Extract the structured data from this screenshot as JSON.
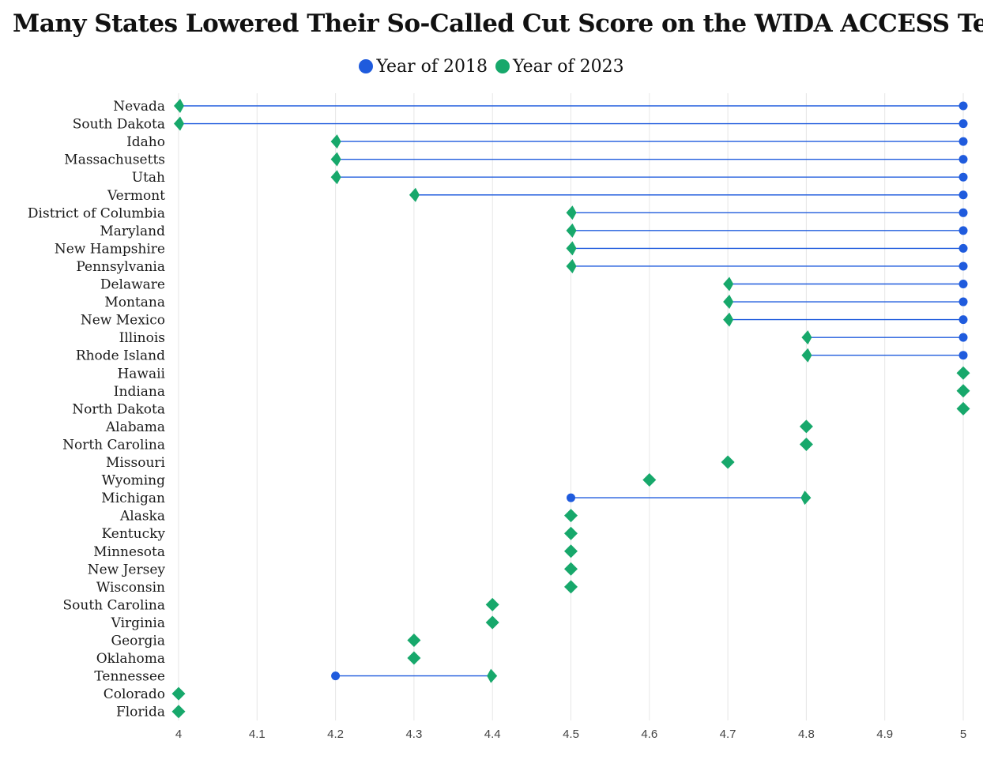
{
  "chart_data": {
    "type": "dumbbell",
    "title": "Many States Lowered Their So-Called Cut Score on the WIDA ACCESS Test",
    "xlabel": "",
    "ylabel": "",
    "xlim": [
      4,
      5
    ],
    "x_ticks": [
      "4",
      "4.1",
      "4.2",
      "4.3",
      "4.4",
      "4.5",
      "4.6",
      "4.7",
      "4.8",
      "4.9",
      "5"
    ],
    "grid": true,
    "legend_position": "top-center",
    "series": [
      {
        "name": "Year of 2018",
        "color": "#1f5bdd",
        "marker": "circle"
      },
      {
        "name": "Year of 2023",
        "color": "#17a86b",
        "marker": "diamond"
      }
    ],
    "rows": [
      {
        "state": "Nevada",
        "y2018": 5.0,
        "y2023": 4.0
      },
      {
        "state": "South Dakota",
        "y2018": 5.0,
        "y2023": 4.0
      },
      {
        "state": "Idaho",
        "y2018": 5.0,
        "y2023": 4.2
      },
      {
        "state": "Massachusetts",
        "y2018": 5.0,
        "y2023": 4.2
      },
      {
        "state": "Utah",
        "y2018": 5.0,
        "y2023": 4.2
      },
      {
        "state": "Vermont",
        "y2018": 5.0,
        "y2023": 4.3
      },
      {
        "state": "District of Columbia",
        "y2018": 5.0,
        "y2023": 4.5
      },
      {
        "state": "Maryland",
        "y2018": 5.0,
        "y2023": 4.5
      },
      {
        "state": "New Hampshire",
        "y2018": 5.0,
        "y2023": 4.5
      },
      {
        "state": "Pennsylvania",
        "y2018": 5.0,
        "y2023": 4.5
      },
      {
        "state": "Delaware",
        "y2018": 5.0,
        "y2023": 4.7
      },
      {
        "state": "Montana",
        "y2018": 5.0,
        "y2023": 4.7
      },
      {
        "state": "New Mexico",
        "y2018": 5.0,
        "y2023": 4.7
      },
      {
        "state": "Illinois",
        "y2018": 5.0,
        "y2023": 4.8
      },
      {
        "state": "Rhode Island",
        "y2018": 5.0,
        "y2023": 4.8
      },
      {
        "state": "Hawaii",
        "y2018": 5.0,
        "y2023": 5.0
      },
      {
        "state": "Indiana",
        "y2018": 5.0,
        "y2023": 5.0
      },
      {
        "state": "North Dakota",
        "y2018": 5.0,
        "y2023": 5.0
      },
      {
        "state": "Alabama",
        "y2018": 4.8,
        "y2023": 4.8
      },
      {
        "state": "North Carolina",
        "y2018": 4.8,
        "y2023": 4.8
      },
      {
        "state": "Missouri",
        "y2018": 4.7,
        "y2023": 4.7
      },
      {
        "state": "Wyoming",
        "y2018": 4.6,
        "y2023": 4.6
      },
      {
        "state": "Michigan",
        "y2018": 4.5,
        "y2023": 4.8
      },
      {
        "state": "Alaska",
        "y2018": 4.5,
        "y2023": 4.5
      },
      {
        "state": "Kentucky",
        "y2018": 4.5,
        "y2023": 4.5
      },
      {
        "state": "Minnesota",
        "y2018": 4.5,
        "y2023": 4.5
      },
      {
        "state": "New Jersey",
        "y2018": 4.5,
        "y2023": 4.5
      },
      {
        "state": "Wisconsin",
        "y2018": 4.5,
        "y2023": 4.5
      },
      {
        "state": "South Carolina",
        "y2018": 4.4,
        "y2023": 4.4
      },
      {
        "state": "Virginia",
        "y2018": 4.4,
        "y2023": 4.4
      },
      {
        "state": "Georgia",
        "y2018": 4.3,
        "y2023": 4.3
      },
      {
        "state": "Oklahoma",
        "y2018": 4.3,
        "y2023": 4.3
      },
      {
        "state": "Tennessee",
        "y2018": 4.2,
        "y2023": 4.4
      },
      {
        "state": "Colorado",
        "y2018": 4.0,
        "y2023": 4.0
      },
      {
        "state": "Florida",
        "y2018": 4.0,
        "y2023": 4.0
      }
    ]
  }
}
